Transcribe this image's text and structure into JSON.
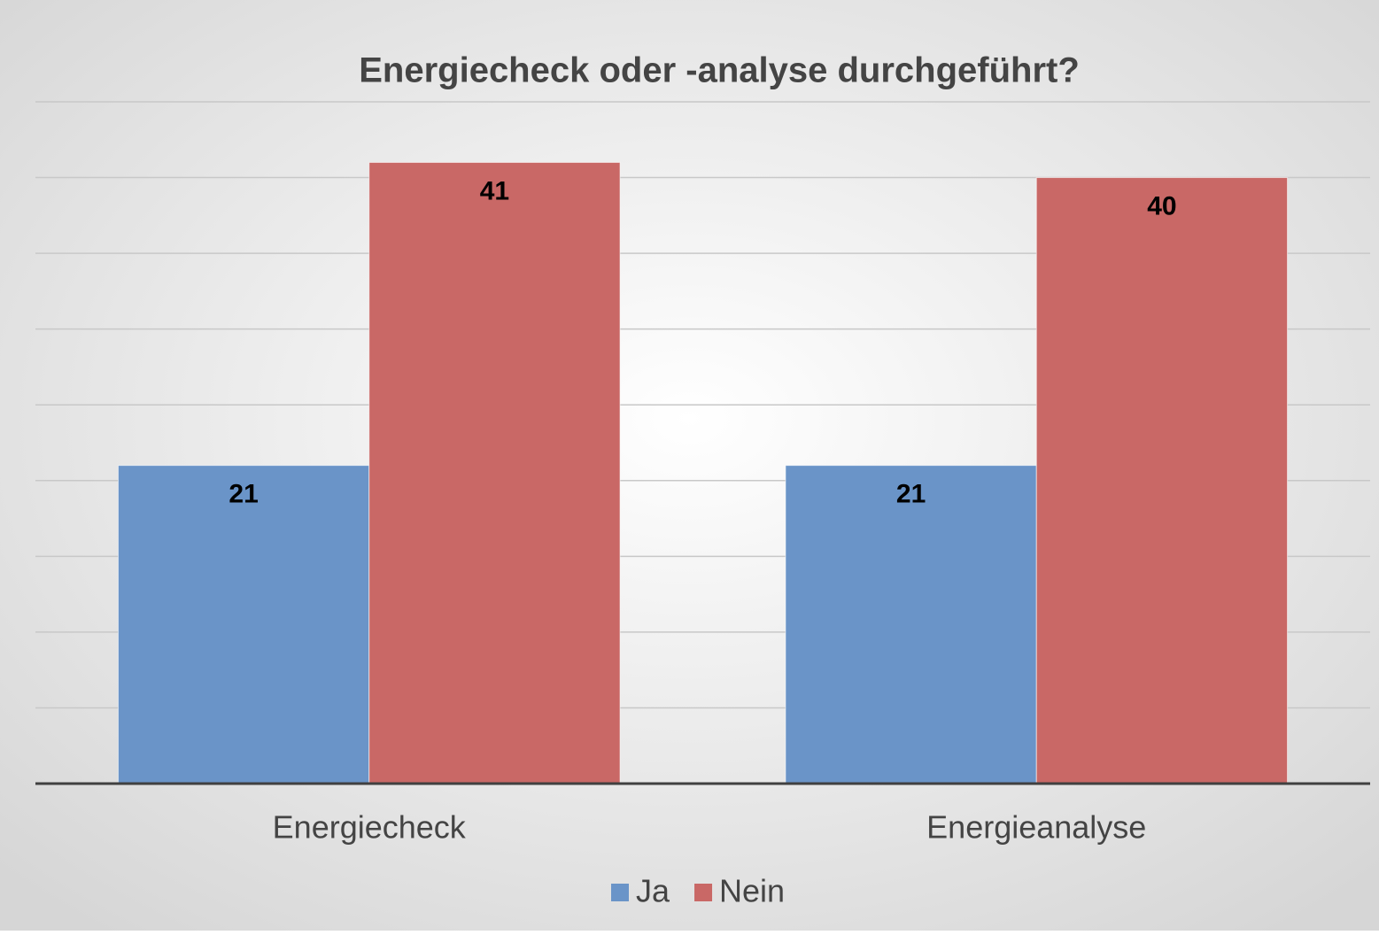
{
  "chart_data": {
    "type": "bar",
    "title": "Energiecheck oder -analyse durchgeführt?",
    "categories": [
      "Energiecheck",
      "Energieanalyse"
    ],
    "series": [
      {
        "name": "Ja",
        "color": "#6a94c8",
        "values": [
          21,
          21
        ]
      },
      {
        "name": "Nein",
        "color": "#c96866",
        "values": [
          41,
          40
        ]
      }
    ],
    "ylim": [
      0,
      45
    ],
    "yticks": [
      0,
      5,
      10,
      15,
      20,
      25,
      30,
      35,
      40,
      45
    ],
    "grid": true,
    "legend": "bottom"
  }
}
